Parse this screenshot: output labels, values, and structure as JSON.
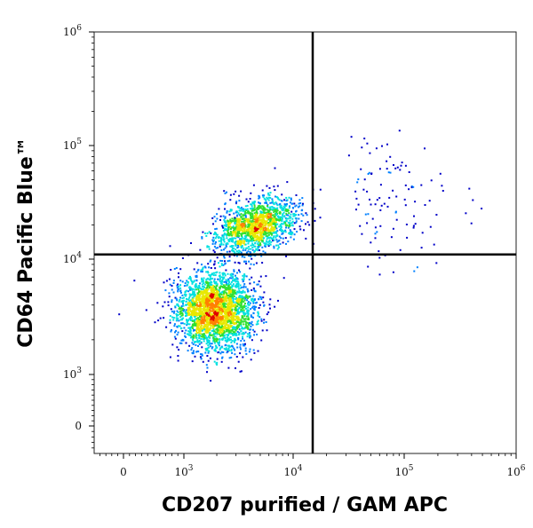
{
  "chart_data": {
    "type": "heatmap",
    "subtype": "flow-cytometry density scatter (biexponential axes)",
    "xlabel": "CD207 purified / GAM APC",
    "ylabel": "CD64 Pacific Blue™",
    "x_scale": "biexponential",
    "y_scale": "biexponential",
    "xlim": [
      -500,
      1000000
    ],
    "ylim": [
      -500,
      1000000
    ],
    "x_ticks": [
      {
        "value": 0,
        "label": "0",
        "exp": ""
      },
      {
        "value": 1000,
        "label": "10",
        "exp": "3"
      },
      {
        "value": 10000,
        "label": "10",
        "exp": "4"
      },
      {
        "value": 100000,
        "label": "10",
        "exp": "5"
      },
      {
        "value": 1000000,
        "label": "10",
        "exp": "6"
      }
    ],
    "y_ticks": [
      {
        "value": 0,
        "label": "0",
        "exp": ""
      },
      {
        "value": 1000,
        "label": "10",
        "exp": "3"
      },
      {
        "value": 10000,
        "label": "10",
        "exp": "4"
      },
      {
        "value": 100000,
        "label": "10",
        "exp": "5"
      },
      {
        "value": 1000000,
        "label": "10",
        "exp": "6"
      }
    ],
    "quadrant_gate": {
      "x": 15000,
      "y": 11000
    },
    "populations": [
      {
        "center": [
          1900,
          3600
        ],
        "density": "highest"
      },
      {
        "center": [
          4500,
          20000
        ],
        "density": "high"
      },
      {
        "center": [
          35000,
          30000
        ],
        "density": "sparse"
      }
    ],
    "colormap": [
      "#0000c8",
      "#0080ff",
      "#00e0e0",
      "#30e030",
      "#e8e800",
      "#ff8000",
      "#e00000"
    ],
    "grid": false
  }
}
